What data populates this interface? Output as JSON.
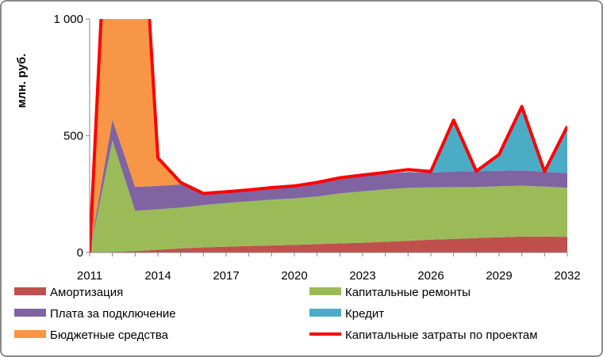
{
  "chart_data": {
    "type": "area",
    "title": "",
    "xlabel": "",
    "ylabel": "млн. руб.",
    "ylim": [
      0,
      1000
    ],
    "yticks": [
      0,
      500,
      1000
    ],
    "ytick_labels": [
      "0",
      "500",
      "1 000"
    ],
    "x": [
      2011,
      2012,
      2013,
      2014,
      2015,
      2016,
      2017,
      2018,
      2019,
      2020,
      2021,
      2022,
      2023,
      2024,
      2025,
      2026,
      2027,
      2028,
      2029,
      2030,
      2031,
      2032
    ],
    "xtick_labels": [
      "2011",
      "2014",
      "2017",
      "2020",
      "2023",
      "2026",
      "2029",
      "2032"
    ],
    "grid": false,
    "legend_position": "bottom",
    "series": [
      {
        "name": "Амортизация",
        "kind": "area",
        "color": "#c0504d",
        "values": [
          0,
          3,
          6,
          12,
          18,
          22,
          25,
          28,
          30,
          33,
          36,
          39,
          42,
          46,
          50,
          55,
          58,
          62,
          65,
          68,
          68,
          67
        ]
      },
      {
        "name": "Капитальные ремонты",
        "kind": "area",
        "color": "#9bbb59",
        "values": [
          0,
          477,
          173,
          173,
          174,
          181,
          187,
          191,
          196,
          199,
          204,
          214,
          220,
          224,
          227,
          224,
          222,
          218,
          219,
          218,
          214,
          210
        ]
      },
      {
        "name": "Плата за подключение",
        "kind": "area",
        "color": "#8064a2",
        "values": [
          0,
          90,
          102,
          100,
          100,
          48,
          45,
          47,
          50,
          51,
          58,
          63,
          66,
          67,
          68,
          63,
          67,
          68,
          66,
          66,
          64,
          63
        ]
      },
      {
        "name": "Кредит",
        "kind": "area",
        "color": "#4bacc6",
        "values": [
          0,
          0,
          0,
          0,
          0,
          0,
          0,
          0,
          0,
          0,
          0,
          0,
          0,
          0,
          0,
          0,
          220,
          0,
          70,
          270,
          0,
          195
        ]
      },
      {
        "name": "Бюджетные средства",
        "kind": "area",
        "color": "#f79646",
        "values": [
          0,
          1430,
          1430,
          115,
          10,
          0,
          0,
          0,
          0,
          0,
          0,
          0,
          0,
          0,
          0,
          0,
          0,
          0,
          0,
          0,
          0,
          0
        ]
      },
      {
        "name": "Капитальные затраты по проектам",
        "kind": "line",
        "color": "#ff0000",
        "values": [
          0,
          2000,
          2000,
          405,
          300,
          253,
          260,
          268,
          278,
          285,
          300,
          320,
          332,
          343,
          355,
          347,
          567,
          348,
          420,
          625,
          347,
          540
        ]
      }
    ],
    "legend_order": [
      "Амортизация",
      "Капитальные ремонты",
      "Плата за подключение",
      "Кредит",
      "Бюджетные средства",
      "Капитальные затраты по проектам"
    ]
  }
}
